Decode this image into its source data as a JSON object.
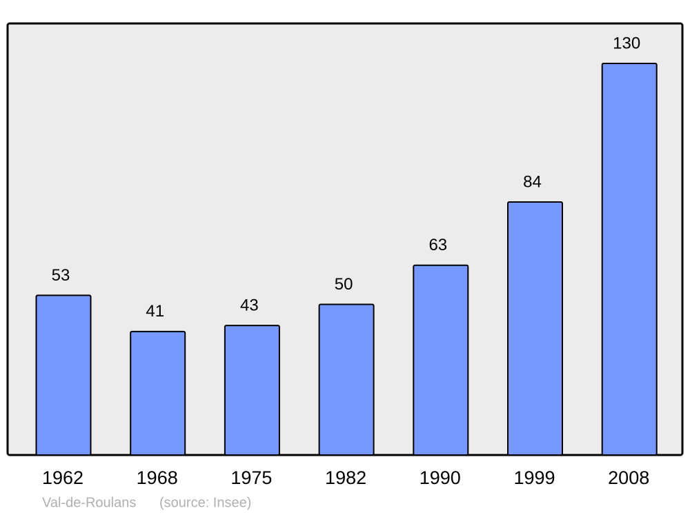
{
  "chart_data": {
    "type": "bar",
    "categories": [
      "1962",
      "1968",
      "1975",
      "1982",
      "1990",
      "1999",
      "2008"
    ],
    "values": [
      53,
      41,
      43,
      50,
      63,
      84,
      130
    ],
    "color": "#7799ff",
    "caption": "Val-de-Roulans",
    "source": "(source: Insee)"
  }
}
